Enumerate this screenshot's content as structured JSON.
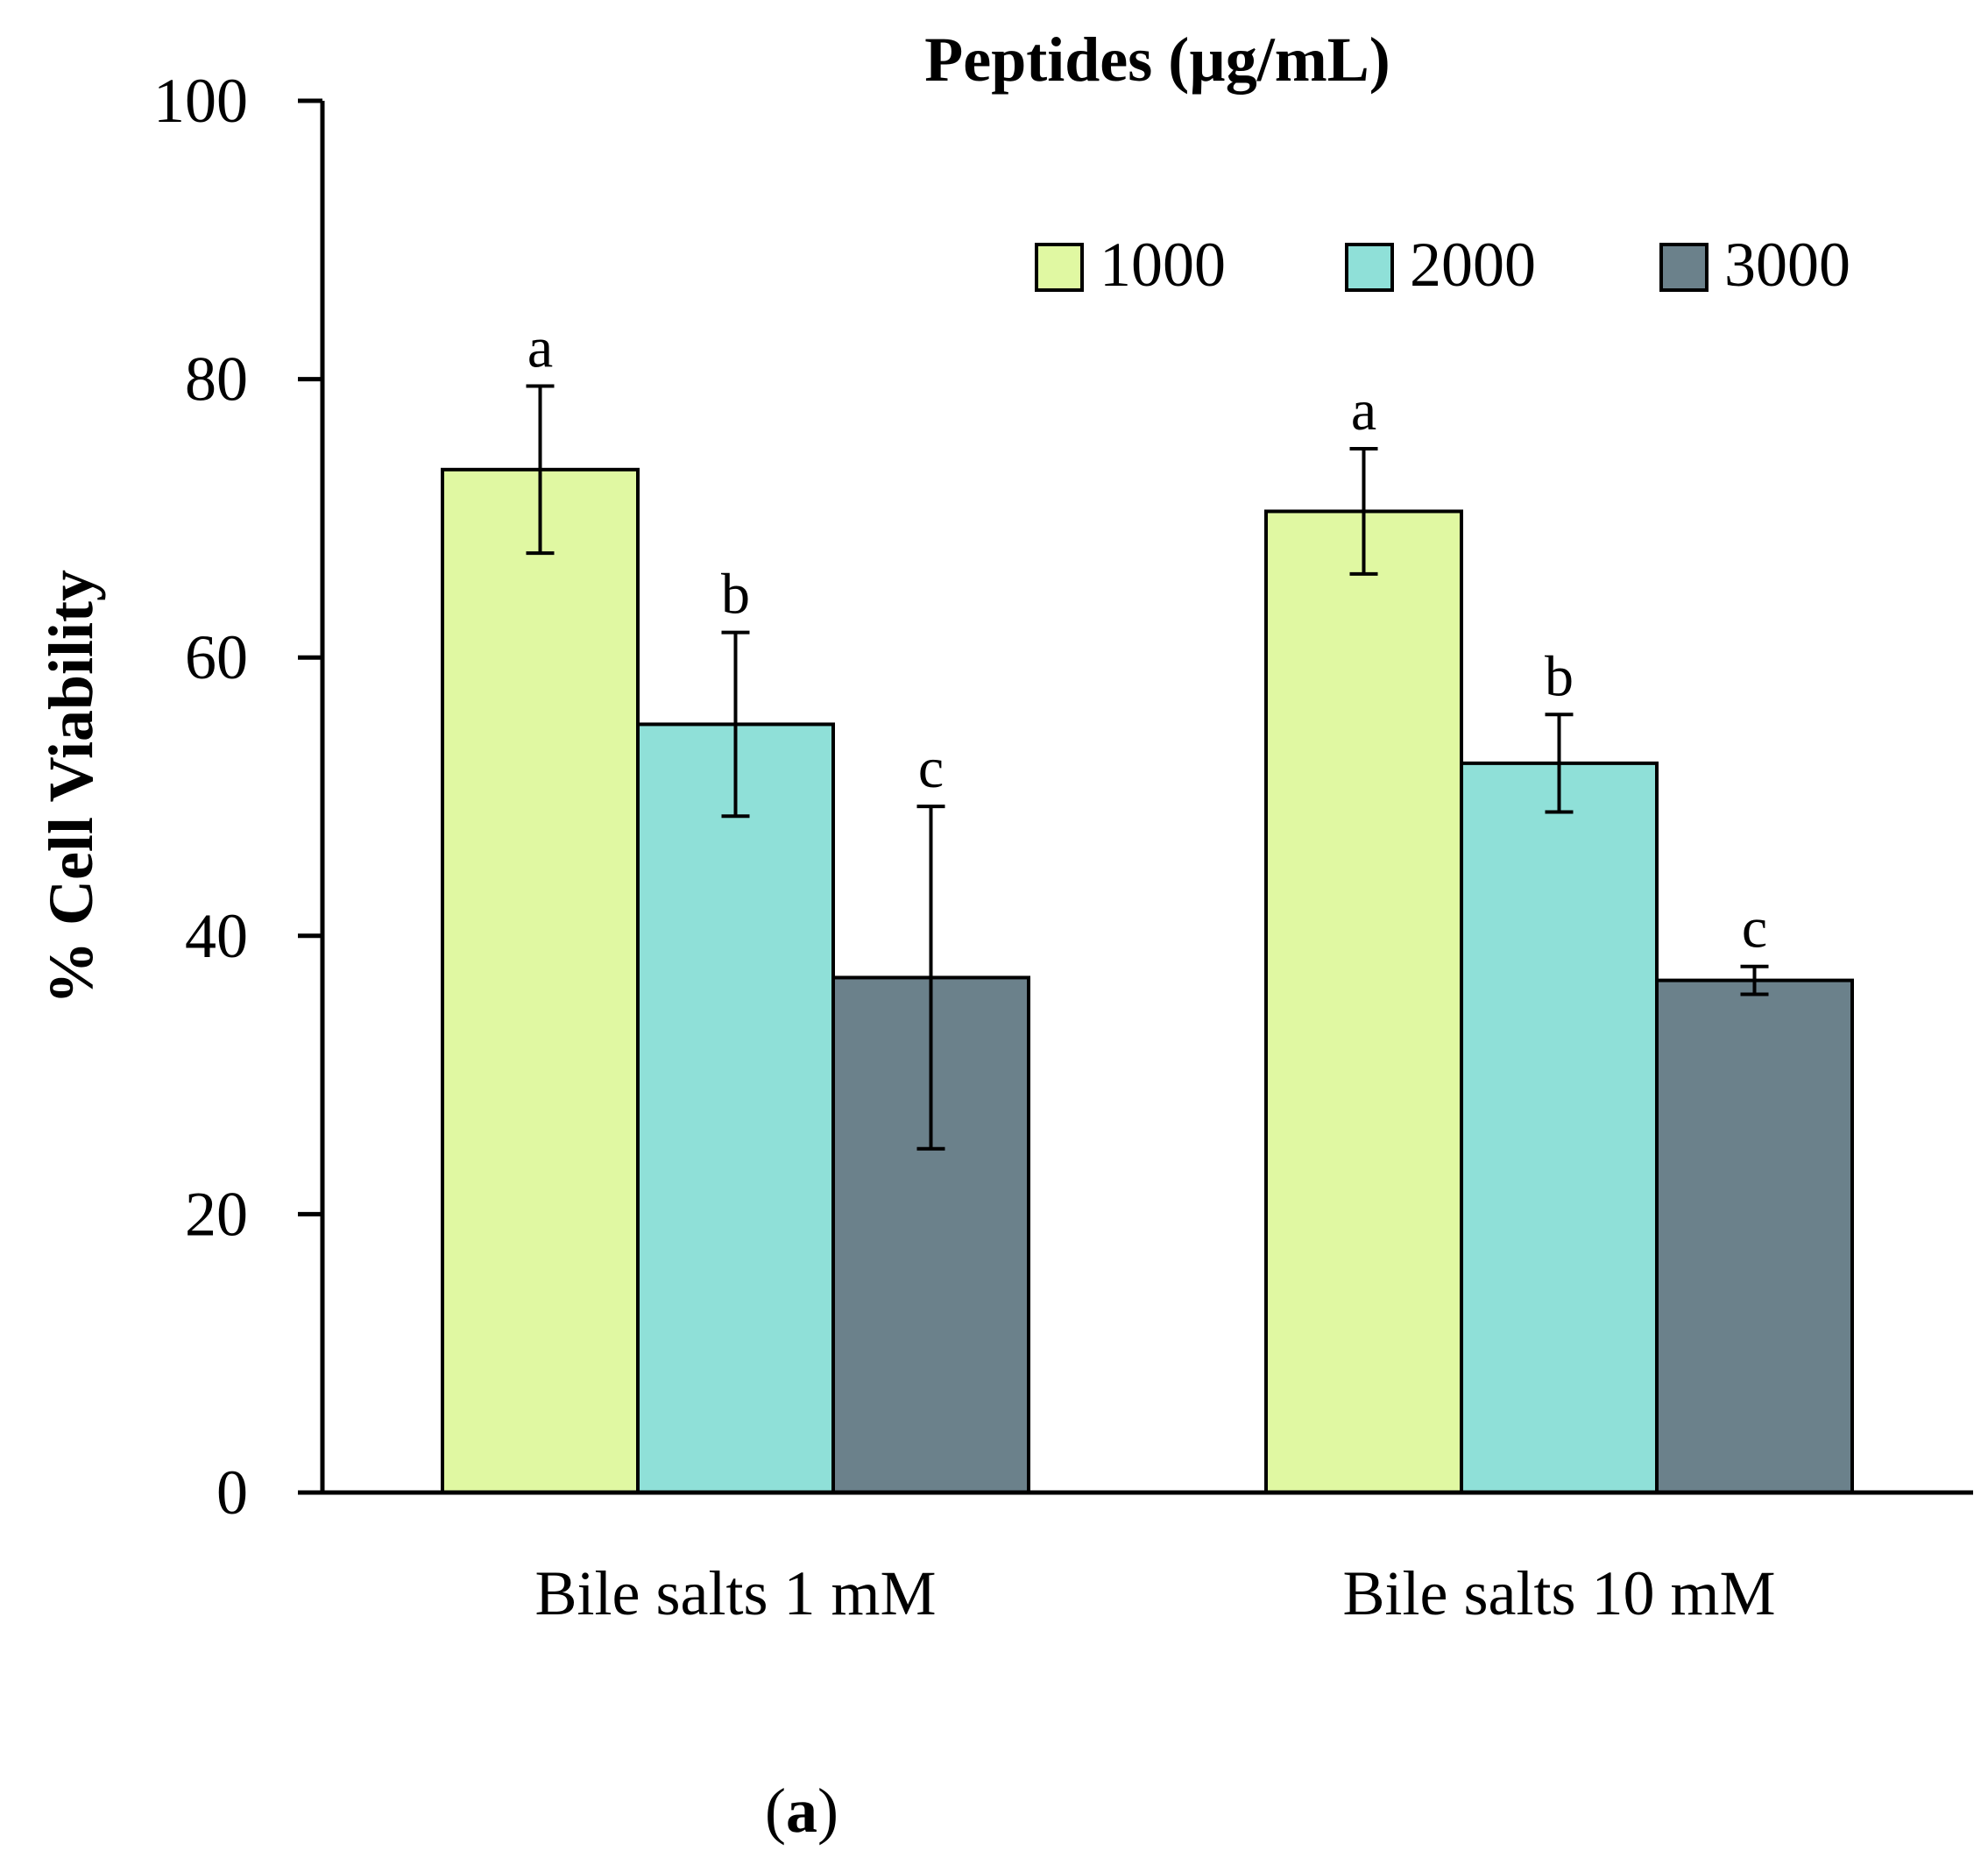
{
  "chart_data": {
    "type": "bar",
    "title": "Peptides (µg/mL)",
    "xlabel": "",
    "ylabel": "% Cell Viability",
    "ylim": [
      0,
      100
    ],
    "yticks": [
      0,
      20,
      40,
      60,
      80,
      100
    ],
    "categories": [
      "Bile salts 1 mM",
      "Bile salts 10 mM"
    ],
    "series": [
      {
        "name": "1000",
        "color": "#e0f8a2",
        "values": [
          73.5,
          70.5
        ],
        "errors": [
          6.0,
          4.5
        ],
        "labels": [
          "a",
          "a"
        ]
      },
      {
        "name": "2000",
        "color": "#8fe0d8",
        "values": [
          55.2,
          52.4
        ],
        "errors": [
          6.6,
          3.5
        ],
        "labels": [
          "b",
          "b"
        ]
      },
      {
        "name": "3000",
        "color": "#6b818b",
        "values": [
          37.0,
          36.8
        ],
        "errors": [
          12.3,
          1.0
        ],
        "labels": [
          "c",
          "c"
        ]
      }
    ],
    "legend_position": "top-right",
    "grid": false,
    "panel_label": {
      "open": "(",
      "letter": "a",
      "close": ")"
    }
  }
}
